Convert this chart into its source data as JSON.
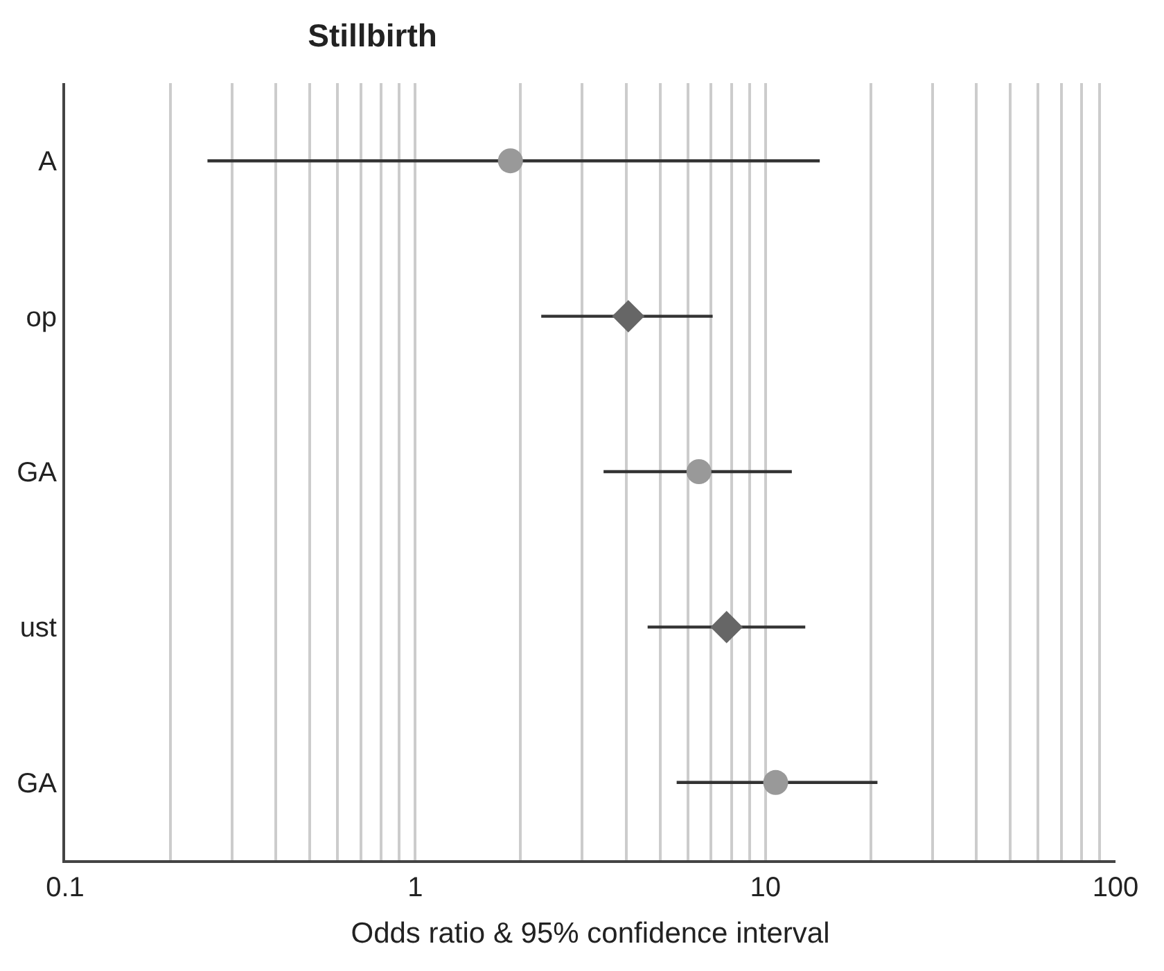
{
  "chart_data": {
    "type": "scatter",
    "title": "Stillbirth",
    "xlabel": "Odds ratio & 95% confidence interval",
    "orientation": "horizontal",
    "log": "x",
    "grid": "x",
    "categories": [
      "A",
      "op",
      "GA",
      "ust",
      "GA"
    ],
    "xlim": [
      0.1,
      100
    ],
    "xticks": [
      0.1,
      {
        "value": 0.2,
        "label": null
      },
      {
        "value": 0.3,
        "label": null
      },
      {
        "value": 0.4,
        "label": null
      },
      {
        "value": 0.5,
        "label": null
      },
      {
        "value": 0.6,
        "label": null
      },
      {
        "value": 0.7,
        "label": null
      },
      {
        "value": 0.8,
        "label": null
      },
      {
        "value": 0.9,
        "label": null
      },
      1,
      {
        "value": 2,
        "label": null
      },
      {
        "value": 3,
        "label": null
      },
      {
        "value": 4,
        "label": null
      },
      {
        "value": 5,
        "label": null
      },
      {
        "value": 6,
        "label": null
      },
      {
        "value": 7,
        "label": null
      },
      {
        "value": 8,
        "label": null
      },
      {
        "value": 9,
        "label": null
      },
      10,
      {
        "value": 20,
        "label": null
      },
      {
        "value": 30,
        "label": null
      },
      {
        "value": 40,
        "label": null
      },
      {
        "value": 50,
        "label": null
      },
      {
        "value": 60,
        "label": null
      },
      {
        "value": 70,
        "label": null
      },
      {
        "value": 80,
        "label": null
      },
      {
        "value": 90,
        "label": null
      },
      100
    ],
    "series": [
      {
        "color": "#999999",
        "marker": "circle",
        "values": [
          1.87,
          null,
          6.46,
          null,
          10.7
        ],
        "errors": [
          [
            0.255,
            14.3
          ],
          null,
          [
            3.45,
            11.9
          ],
          null,
          [
            5.58,
            20.9
          ]
        ]
      },
      {
        "color": "#666666",
        "marker": "diamond",
        "values": [
          null,
          4.06,
          null,
          7.75,
          null
        ],
        "errors": [
          null,
          [
            2.29,
            7.07
          ],
          null,
          [
            4.61,
            13.0
          ],
          null
        ]
      }
    ]
  }
}
